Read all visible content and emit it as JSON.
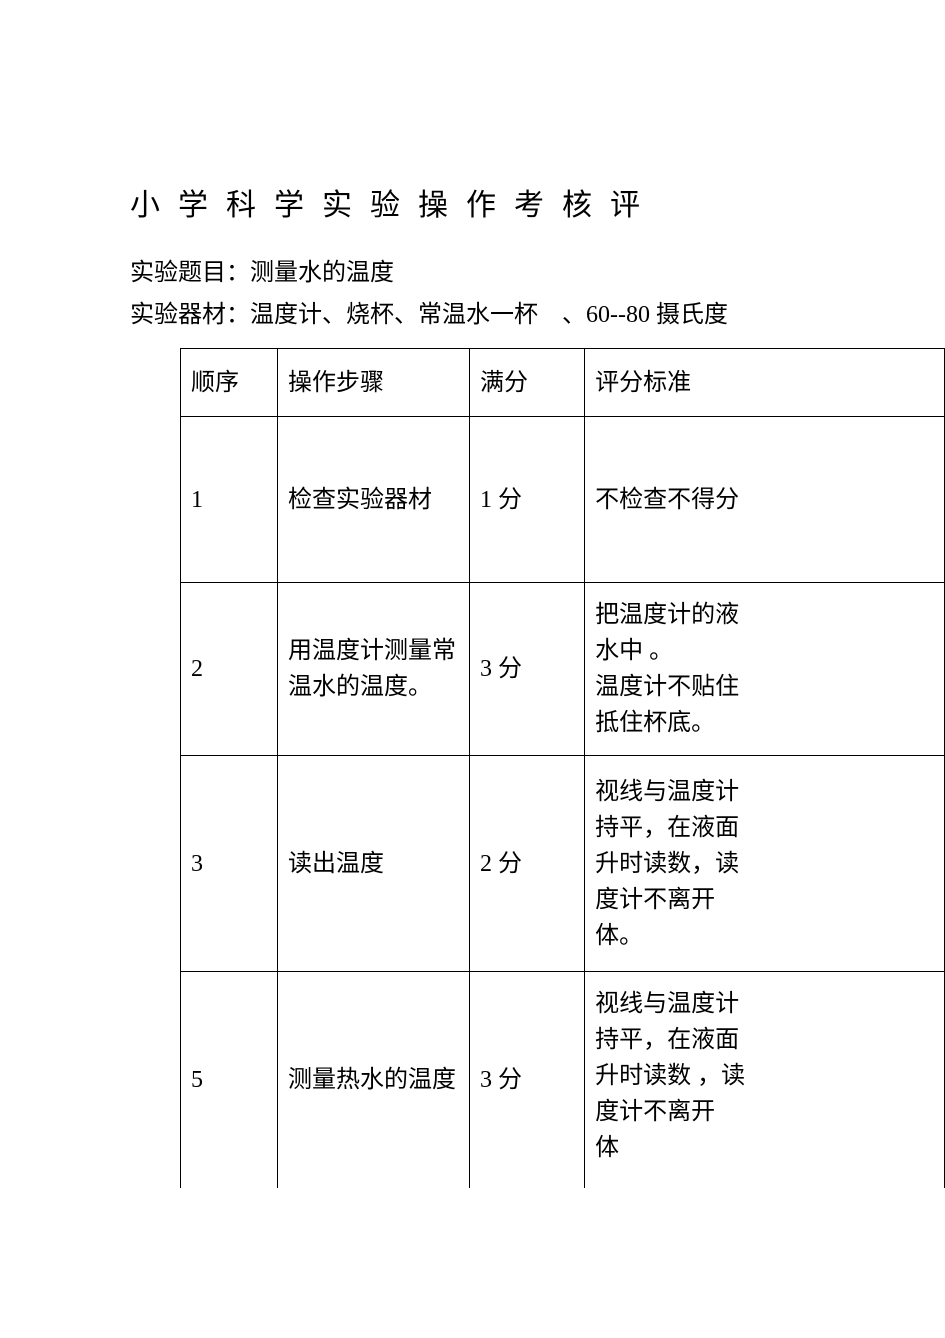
{
  "title": "小学科学实验操作考核评",
  "meta": {
    "topic_label": "实验题目：",
    "topic_value": "测量水的温度",
    "equip_label": "实验器材：",
    "equip_value": "温度计、烧杯、常温水一杯　、60--80 摄氏度"
  },
  "table": {
    "headers": {
      "seq": "顺序",
      "step": "操作步骤",
      "score": "满分",
      "criteria": "评分标准"
    },
    "rows": [
      {
        "seq": "1",
        "step": "检查实验器材",
        "score": "1 分",
        "criteria": "不检查不得分"
      },
      {
        "seq": "2",
        "step": "用温度计测量常温水的温度。",
        "score": "3 分",
        "criteria": "把温度计的液\n水中 。\n温度计不贴住\n抵住杯底。"
      },
      {
        "seq": "3",
        "step": "读出温度",
        "score": "2 分",
        "criteria": "视线与温度计\n持平，在液面\n升时读数，读\n度计不离开\n体。"
      },
      {
        "seq": "5",
        "step": "测量热水的温度",
        "score": "3 分",
        "criteria": "视线与温度计\n持平，在液面\n升时读数 ，读\n度计不离开\n体"
      }
    ]
  },
  "colors": {
    "background": "#ffffff",
    "text": "#000000",
    "border": "#000000"
  }
}
